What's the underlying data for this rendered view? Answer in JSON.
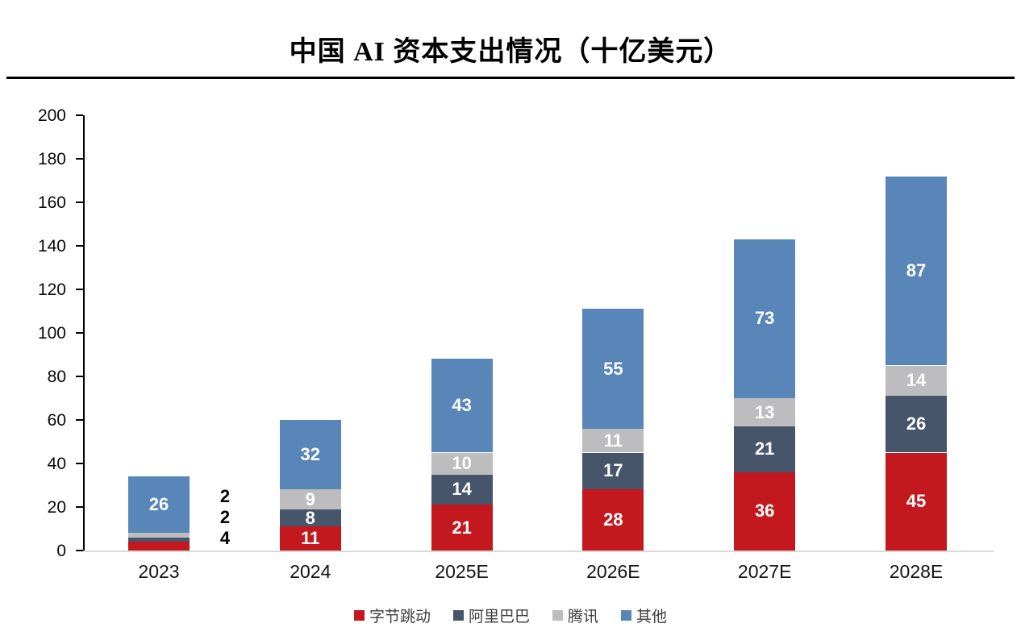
{
  "title": "中国 AI 资本支出情况（十亿美元）",
  "colors": {
    "bytedance_red": "#c2181e",
    "alibaba_slate": "#46556a",
    "tencent_gray": "#bdbdbf",
    "others_blue": "#5886b8",
    "axis": "#000000",
    "baseline": "#d9d9d9",
    "inside_label": "#ffffff",
    "outside_label": "#000000"
  },
  "chart_data": {
    "type": "bar",
    "stacked": true,
    "title": "中国 AI 资本支出情况（十亿美元）",
    "categories": [
      "2023",
      "2024",
      "2025E",
      "2026E",
      "2027E",
      "2028E"
    ],
    "series": [
      {
        "name": "字节跳动",
        "color": "#c2181e",
        "values": [
          4,
          11,
          21,
          28,
          36,
          45
        ]
      },
      {
        "name": "阿里巴巴",
        "color": "#46556a",
        "values": [
          2,
          8,
          14,
          17,
          21,
          26
        ]
      },
      {
        "name": "腾讯",
        "color": "#bdbdbf",
        "values": [
          2,
          9,
          10,
          11,
          13,
          14
        ]
      },
      {
        "name": "其他",
        "color": "#5886b8",
        "values": [
          26,
          32,
          43,
          55,
          73,
          87
        ]
      }
    ],
    "ylim": [
      0,
      200
    ],
    "yticks": [
      0,
      20,
      40,
      60,
      80,
      100,
      120,
      140,
      160,
      180,
      200
    ],
    "xlabel": "",
    "ylabel": "",
    "grid": false,
    "legend_position": "bottom",
    "value_label_style": "white bold inside segments; segments too small (2023: 2, 2, 4) labeled in black to the right of the bar"
  },
  "legend": {
    "items": [
      "字节跳动",
      "阿里巴巴",
      "腾讯",
      "其他"
    ]
  }
}
